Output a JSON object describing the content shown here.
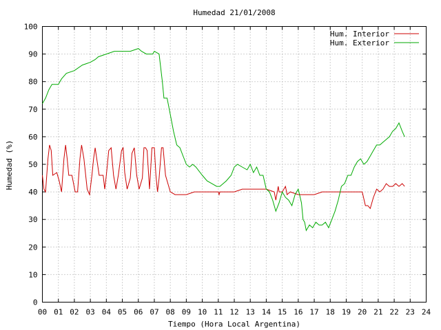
{
  "chart_data": {
    "type": "line",
    "title": "Humedad 21/01/2008",
    "xlabel": "Tiempo (Hora Local Argentina)",
    "ylabel": "Humedad (%)",
    "xlim": [
      0,
      24
    ],
    "ylim": [
      0,
      100
    ],
    "xticks": [
      0,
      1,
      2,
      3,
      4,
      5,
      6,
      7,
      8,
      9,
      10,
      11,
      12,
      13,
      14,
      15,
      16,
      17,
      18,
      19,
      20,
      21,
      22,
      23,
      24
    ],
    "xtick_labels": [
      "00",
      "01",
      "02",
      "03",
      "04",
      "05",
      "06",
      "07",
      "08",
      "09",
      "10",
      "11",
      "12",
      "13",
      "14",
      "15",
      "16",
      "17",
      "18",
      "19",
      "20",
      "21",
      "22",
      "23",
      "24"
    ],
    "yticks": [
      0,
      10,
      20,
      30,
      40,
      50,
      60,
      70,
      80,
      90,
      100
    ],
    "ytick_labels": [
      "0",
      "10",
      "20",
      "30",
      "40",
      "50",
      "60",
      "70",
      "80",
      "90",
      "100"
    ],
    "grid": true,
    "legend": "top-right",
    "series": [
      {
        "name": "Hum. Interior",
        "color": "#cc0000",
        "x": [
          0.0,
          0.1,
          0.2,
          0.35,
          0.45,
          0.55,
          0.65,
          0.9,
          1.05,
          1.2,
          1.35,
          1.45,
          1.55,
          1.65,
          1.85,
          2.05,
          2.2,
          2.35,
          2.45,
          2.6,
          2.8,
          2.95,
          3.1,
          3.2,
          3.3,
          3.55,
          3.8,
          3.9,
          4.0,
          4.15,
          4.3,
          4.45,
          4.6,
          4.75,
          4.95,
          5.05,
          5.15,
          5.3,
          5.5,
          5.6,
          5.75,
          5.9,
          6.05,
          6.25,
          6.35,
          6.45,
          6.55,
          6.7,
          6.85,
          7.0,
          7.1,
          7.2,
          7.3,
          7.45,
          7.55,
          7.7,
          7.85,
          8.0,
          8.3,
          8.6,
          9.0,
          9.5,
          10.0,
          10.5,
          11.0,
          11.05,
          11.1,
          11.5,
          12.0,
          12.5,
          13.0,
          13.5,
          14.0,
          14.5,
          14.6,
          14.75,
          14.8,
          15.0,
          15.2,
          15.3,
          15.5,
          16.0,
          16.5,
          17.0,
          17.5,
          18.0,
          18.5,
          19.0,
          19.2,
          19.5,
          19.8,
          20.0,
          20.2,
          20.35,
          20.5,
          20.7,
          20.9,
          21.1,
          21.3,
          21.5,
          21.7,
          21.9,
          22.1,
          22.3,
          22.5,
          22.65
        ],
        "y": [
          46,
          41,
          40,
          52,
          57,
          55,
          46,
          47,
          44,
          40,
          52,
          57,
          52,
          46,
          46,
          40,
          40,
          52,
          57,
          52,
          41,
          39,
          46,
          52,
          56,
          46,
          46,
          41,
          46,
          55,
          56,
          46,
          41,
          46,
          55,
          56,
          47,
          41,
          45,
          54,
          56,
          46,
          41,
          45,
          56,
          56,
          55,
          41,
          56,
          56,
          46,
          40,
          45,
          56,
          56,
          46,
          43,
          40,
          39,
          39,
          39,
          40,
          40,
          40,
          40,
          39,
          40,
          40,
          40,
          41,
          41,
          41,
          41,
          40,
          37,
          42,
          40,
          40,
          42,
          39,
          40,
          39,
          39,
          39,
          40,
          40,
          40,
          40,
          40,
          40,
          40,
          40,
          35,
          35,
          34,
          38,
          41,
          40,
          41,
          43,
          42,
          42,
          43,
          42,
          43,
          42
        ]
      },
      {
        "name": "Hum. Exterior",
        "color": "#00aa00",
        "x": [
          0.0,
          0.2,
          0.4,
          0.6,
          1.0,
          1.2,
          1.5,
          2.0,
          2.5,
          3.0,
          3.3,
          3.5,
          4.0,
          4.5,
          5.0,
          5.5,
          6.0,
          6.2,
          6.5,
          6.9,
          7.0,
          7.3,
          7.5,
          7.6,
          7.8,
          8.0,
          8.2,
          8.4,
          8.6,
          8.8,
          9.0,
          9.2,
          9.4,
          9.6,
          10.0,
          10.3,
          10.6,
          10.9,
          11.1,
          11.3,
          11.5,
          11.8,
          12.0,
          12.2,
          12.5,
          12.8,
          13.0,
          13.2,
          13.4,
          13.6,
          13.8,
          14.0,
          14.2,
          14.4,
          14.6,
          14.8,
          15.0,
          15.2,
          15.4,
          15.6,
          15.8,
          16.0,
          16.2,
          16.3,
          16.4,
          16.5,
          16.7,
          16.9,
          17.1,
          17.3,
          17.5,
          17.7,
          17.9,
          18.1,
          18.3,
          18.5,
          18.7,
          18.9,
          19.1,
          19.3,
          19.5,
          19.7,
          19.9,
          20.1,
          20.3,
          20.5,
          20.7,
          20.9,
          21.1,
          21.3,
          21.5,
          21.7,
          21.9,
          22.1,
          22.3,
          22.5,
          22.65
        ],
        "y": [
          72,
          74,
          77,
          79,
          79,
          81,
          83,
          84,
          86,
          87,
          88,
          89,
          90,
          91,
          91,
          91,
          92,
          91,
          90,
          90,
          91,
          90,
          80,
          74,
          74,
          68,
          62,
          57,
          56,
          53,
          50,
          49,
          50,
          49,
          46,
          44,
          43,
          42,
          42,
          43,
          44,
          46,
          49,
          50,
          49,
          48,
          50,
          47,
          49,
          46,
          46,
          41,
          40,
          37,
          33,
          36,
          40,
          38,
          37,
          35,
          39,
          41,
          36,
          30,
          29,
          26,
          28,
          27,
          29,
          28,
          28,
          29,
          27,
          30,
          33,
          37,
          42,
          43,
          46,
          46,
          49,
          51,
          52,
          50,
          51,
          53,
          55,
          57,
          57,
          58,
          59,
          60,
          62,
          63,
          65,
          62,
          60
        ]
      }
    ]
  }
}
